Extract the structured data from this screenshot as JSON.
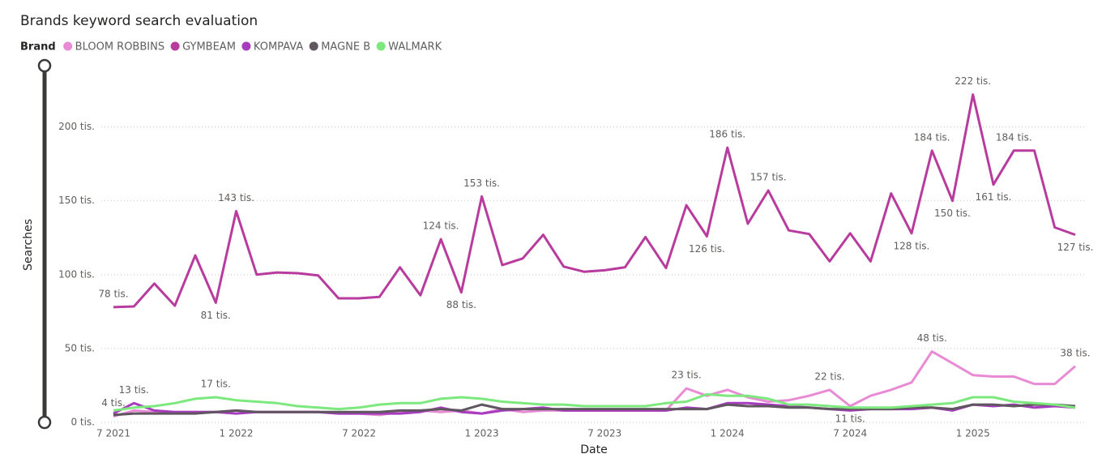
{
  "chart_data": {
    "type": "line",
    "title": "Brands keyword search evaluation",
    "legend_title": "Brand",
    "legend": "top-left",
    "xlabel": "Date",
    "ylabel": "Searches",
    "x": [
      "2021-07",
      "2021-08",
      "2021-09",
      "2021-10",
      "2021-11",
      "2021-12",
      "2022-01",
      "2022-02",
      "2022-03",
      "2022-04",
      "2022-05",
      "2022-06",
      "2022-07",
      "2022-08",
      "2022-09",
      "2022-10",
      "2022-11",
      "2022-12",
      "2023-01",
      "2023-02",
      "2023-03",
      "2023-04",
      "2023-05",
      "2023-06",
      "2023-07",
      "2023-08",
      "2023-09",
      "2023-10",
      "2023-11",
      "2023-12",
      "2024-01",
      "2024-02",
      "2024-03",
      "2024-04",
      "2024-05",
      "2024-06",
      "2024-07",
      "2024-08",
      "2024-09",
      "2024-10",
      "2024-11",
      "2024-12",
      "2025-01",
      "2025-02",
      "2025-03",
      "2025-04",
      "2025-05",
      "2025-06"
    ],
    "xticks": [
      {
        "value": "2021-07",
        "label": "7 2021"
      },
      {
        "value": "2022-01",
        "label": "1 2022"
      },
      {
        "value": "2022-07",
        "label": "7 2022"
      },
      {
        "value": "2023-01",
        "label": "1 2023"
      },
      {
        "value": "2023-07",
        "label": "7 2023"
      },
      {
        "value": "2024-01",
        "label": "1 2024"
      },
      {
        "value": "2024-07",
        "label": "7 2024"
      },
      {
        "value": "2025-01",
        "label": "1 2025"
      }
    ],
    "ylim": [
      0,
      230
    ],
    "yticks": [
      {
        "value": 0,
        "label": "0 tis."
      },
      {
        "value": 50,
        "label": "50 tis."
      },
      {
        "value": 100,
        "label": "100 tis."
      },
      {
        "value": 150,
        "label": "150 tis."
      },
      {
        "value": 200,
        "label": "200 tis."
      }
    ],
    "grid": true,
    "series": [
      {
        "name": "BLOOM ROBBINS",
        "color": "#e88bd4",
        "values": [
          4,
          8,
          7,
          7,
          7,
          7,
          8,
          7,
          7,
          7,
          7,
          6,
          6,
          5,
          7,
          8,
          7,
          8,
          6,
          9,
          7,
          8,
          8,
          8,
          8,
          8,
          8,
          8,
          23,
          18,
          22,
          17,
          14,
          15,
          18,
          22,
          11,
          18,
          22,
          27,
          48,
          40,
          32,
          31,
          31,
          26,
          26,
          38
        ],
        "value_labels": [
          "4 tis.",
          null,
          null,
          null,
          null,
          null,
          null,
          null,
          null,
          null,
          null,
          null,
          null,
          null,
          null,
          null,
          null,
          null,
          null,
          null,
          null,
          null,
          null,
          null,
          null,
          null,
          null,
          null,
          "23 tis.",
          null,
          null,
          null,
          null,
          null,
          null,
          "22 tis.",
          "11 tis.",
          null,
          null,
          null,
          "48 tis.",
          null,
          null,
          null,
          null,
          null,
          null,
          "38 tis."
        ]
      },
      {
        "name": "GYMBEAM",
        "color": "#b83b9e",
        "values": [
          78,
          78.5,
          94,
          79,
          113,
          81,
          143,
          100,
          101.5,
          101,
          99.5,
          84,
          84,
          85,
          105,
          86,
          124,
          88,
          153,
          106.5,
          111,
          127,
          105.5,
          102,
          103,
          105,
          125.5,
          104.5,
          147,
          126,
          186,
          134.5,
          157,
          130,
          127.5,
          109,
          128,
          109,
          155,
          128,
          184,
          150,
          222,
          161,
          184,
          184,
          132,
          127
        ],
        "value_labels": [
          "78 tis.",
          null,
          null,
          null,
          null,
          "81 tis.",
          "143 tis.",
          null,
          null,
          null,
          null,
          null,
          null,
          null,
          null,
          null,
          "124 tis.",
          "88 tis.",
          "153 tis.",
          null,
          null,
          null,
          null,
          null,
          null,
          null,
          null,
          null,
          null,
          "126 tis.",
          "186 tis.",
          null,
          "157 tis.",
          null,
          null,
          null,
          null,
          null,
          null,
          "128 tis.",
          "184 tis.",
          "150 tis.",
          "222 tis.",
          "161 tis.",
          "184 tis.",
          null,
          null,
          "127 tis."
        ]
      },
      {
        "name": "KOMPAVA",
        "color": "#a83cbf",
        "values": [
          6,
          13,
          8,
          7,
          7,
          7,
          6,
          7,
          7,
          7,
          7,
          6,
          6,
          6,
          6,
          7,
          10,
          7,
          6,
          8,
          9,
          10,
          8,
          8,
          8,
          8,
          8,
          8,
          10,
          9,
          13,
          13,
          12,
          11,
          10,
          9,
          8,
          9,
          9,
          9,
          10,
          8,
          12,
          11,
          12,
          10,
          11,
          10
        ],
        "value_labels": [
          null,
          "13 tis.",
          null,
          null,
          null,
          null,
          null,
          null,
          null,
          null,
          null,
          null,
          null,
          null,
          null,
          null,
          null,
          null,
          null,
          null,
          null,
          null,
          null,
          null,
          null,
          null,
          null,
          null,
          null,
          null,
          null,
          null,
          null,
          null,
          null,
          null,
          null,
          null,
          null,
          null,
          null,
          null,
          null,
          null,
          null,
          null,
          null,
          null
        ]
      },
      {
        "name": "MAGNE B",
        "color": "#5f5660",
        "values": [
          5,
          6,
          6,
          6,
          6,
          7,
          8,
          7,
          7,
          7,
          7,
          7,
          7,
          7,
          8,
          8,
          9,
          8,
          12,
          9,
          9,
          9,
          9,
          9,
          9,
          9,
          9,
          9,
          9,
          9,
          12,
          11,
          11,
          10,
          10,
          9,
          9,
          9,
          9,
          10,
          10,
          9,
          12,
          12,
          11,
          12,
          12,
          11
        ]
      },
      {
        "name": "WALMARK",
        "color": "#7de87d",
        "values": [
          8,
          10,
          11,
          13,
          16,
          17,
          15,
          14,
          13,
          11,
          10,
          9,
          10,
          12,
          13,
          13,
          16,
          17,
          16,
          14,
          13,
          12,
          12,
          11,
          11,
          11,
          11,
          13,
          14,
          19,
          18,
          18,
          16,
          12,
          12,
          11,
          10,
          10,
          10,
          11,
          12,
          13,
          17,
          17,
          14,
          13,
          12,
          10
        ],
        "value_labels": [
          null,
          null,
          null,
          null,
          null,
          "17 tis.",
          null,
          null,
          null,
          null,
          null,
          null,
          null,
          null,
          null,
          null,
          null,
          null,
          null,
          null,
          null,
          null,
          null,
          null,
          null,
          null,
          null,
          null,
          null,
          null,
          null,
          null,
          null,
          null,
          null,
          null,
          null,
          null,
          null,
          null,
          null,
          null,
          null,
          null,
          null,
          null,
          null,
          null
        ]
      }
    ]
  }
}
